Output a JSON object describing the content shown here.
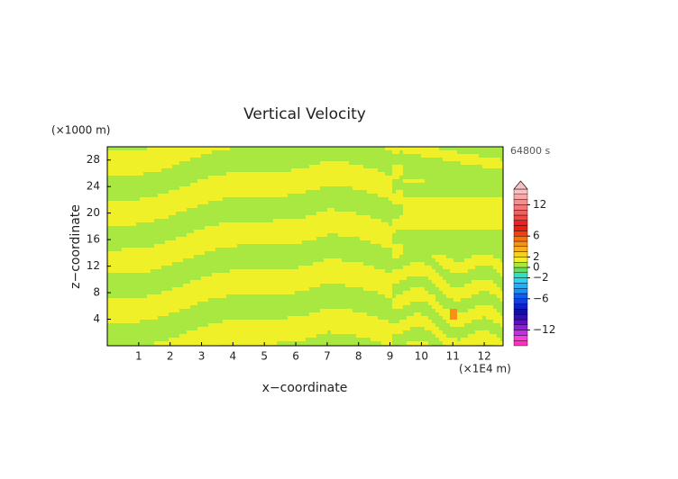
{
  "chart_data": {
    "type": "contour",
    "title": "Vertical Velocity",
    "y_unit": "(×1000 m)",
    "x_unit": "(×1E4 m)",
    "time_label": "64800 s",
    "xlabel": "x−coordinate",
    "ylabel": "z−coordinate",
    "xlim": [
      0,
      12.6
    ],
    "ylim": [
      0,
      30
    ],
    "xticks": [
      1,
      2,
      3,
      4,
      5,
      6,
      7,
      8,
      9,
      10,
      11,
      12
    ],
    "yticks": [
      4,
      8,
      12,
      16,
      20,
      24,
      28
    ],
    "colorbar": {
      "levels": [
        -15,
        -14,
        -13,
        -12,
        -11,
        -10,
        -9,
        -8,
        -7,
        -6,
        -5,
        -4,
        -3,
        -2,
        -1,
        0,
        1,
        2,
        3,
        4,
        5,
        6,
        7,
        8,
        9,
        10,
        11,
        12,
        13,
        14,
        15
      ],
      "colors": [
        "#ff30c0",
        "#f040d8",
        "#c030e0",
        "#9020d8",
        "#6010c0",
        "#3010b0",
        "#1010a0",
        "#1020c8",
        "#1040e0",
        "#1060f0",
        "#1890f8",
        "#20b0f8",
        "#30d0f0",
        "#30e0c0",
        "#60e060",
        "#a8e840",
        "#f0f028",
        "#f8d020",
        "#f8b018",
        "#f89018",
        "#f87010",
        "#f04010",
        "#e82010",
        "#f02020",
        "#f04848",
        "#f06060",
        "#f07878",
        "#f09090",
        "#f8a8a8",
        "#f8c0c0"
      ],
      "ticks": [
        {
          "value": 12,
          "label": "12"
        },
        {
          "value": 6,
          "label": "6"
        },
        {
          "value": 2,
          "label": "2"
        },
        {
          "value": 0,
          "label": "0"
        },
        {
          "value": -2,
          "label": "−2"
        },
        {
          "value": -6,
          "label": "−6"
        },
        {
          "value": -12,
          "label": "−12"
        }
      ]
    }
  }
}
